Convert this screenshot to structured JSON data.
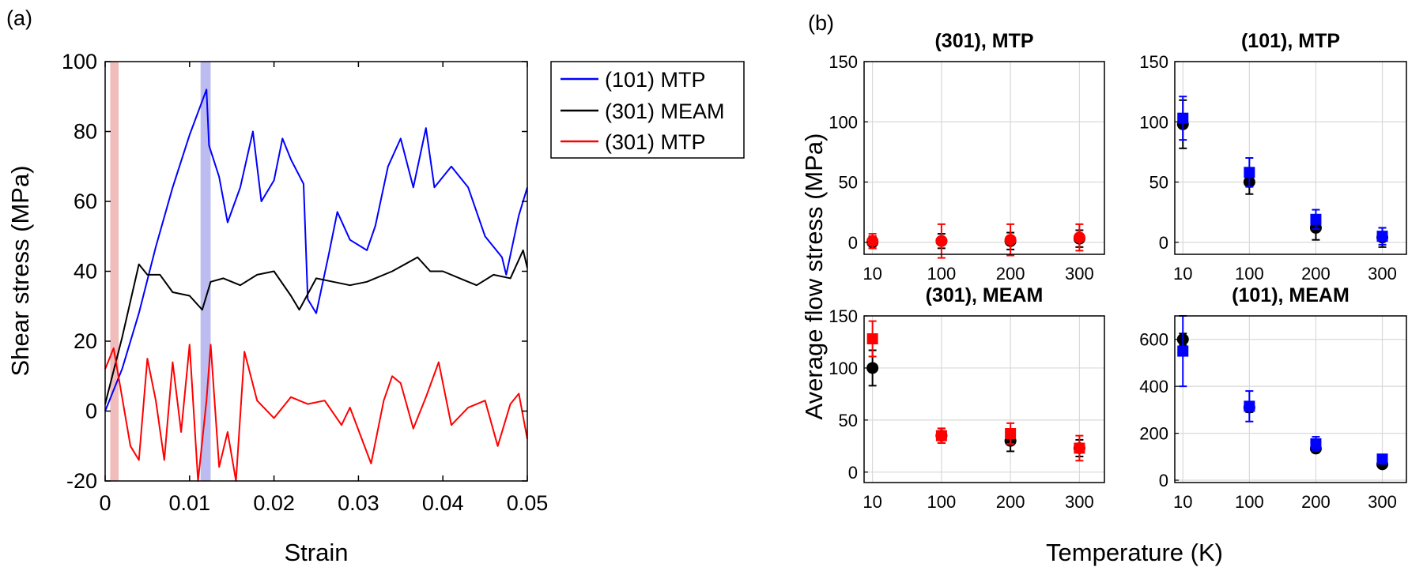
{
  "panel_a": {
    "tag": "(a)",
    "xlabel": "Strain",
    "ylabel": "Shear stress (MPa)"
  },
  "panel_b": {
    "tag": "(b)",
    "xlabel": "Temperature (K)",
    "ylabel": "Average flow stress (MPa)"
  },
  "colors": {
    "blue": "#0000ff",
    "black": "#000000",
    "red": "#ff0000"
  },
  "chart_data": [
    {
      "id": "a",
      "type": "line",
      "xlim": [
        0,
        0.05
      ],
      "ylim": [
        -20,
        100
      ],
      "xticks": [
        "0",
        "0.01",
        "0.02",
        "0.03",
        "0.04",
        "0.05"
      ],
      "yticks": [
        "-20",
        "0",
        "20",
        "40",
        "60",
        "80",
        "100"
      ],
      "grid": false,
      "legend_position": "outside-right",
      "highlight_bands": [
        {
          "x0": 0.0006,
          "x1": 0.0016,
          "color": "#f0bcbc"
        },
        {
          "x0": 0.0113,
          "x1": 0.0125,
          "color": "#bcbcf0"
        }
      ],
      "series": [
        {
          "name": "(101) MTP",
          "color": "#0000ff",
          "points": [
            [
              0,
              0
            ],
            [
              0.002,
              12
            ],
            [
              0.004,
              28
            ],
            [
              0.006,
              47
            ],
            [
              0.008,
              64
            ],
            [
              0.01,
              79
            ],
            [
              0.012,
              92
            ],
            [
              0.0123,
              76
            ],
            [
              0.0135,
              67
            ],
            [
              0.0145,
              54
            ],
            [
              0.016,
              64
            ],
            [
              0.0175,
              80
            ],
            [
              0.0185,
              60
            ],
            [
              0.02,
              66
            ],
            [
              0.021,
              78
            ],
            [
              0.022,
              72
            ],
            [
              0.0235,
              65
            ],
            [
              0.024,
              32
            ],
            [
              0.025,
              28
            ],
            [
              0.0265,
              45
            ],
            [
              0.0275,
              57
            ],
            [
              0.029,
              49
            ],
            [
              0.031,
              46
            ],
            [
              0.032,
              53
            ],
            [
              0.0335,
              70
            ],
            [
              0.035,
              78
            ],
            [
              0.0365,
              64
            ],
            [
              0.038,
              81
            ],
            [
              0.039,
              64
            ],
            [
              0.041,
              70
            ],
            [
              0.043,
              64
            ],
            [
              0.045,
              50
            ],
            [
              0.047,
              44
            ],
            [
              0.0475,
              39
            ],
            [
              0.049,
              56
            ],
            [
              0.05,
              64
            ]
          ]
        },
        {
          "name": "(301) MEAM",
          "color": "#000000",
          "points": [
            [
              0,
              2
            ],
            [
              0.002,
              21
            ],
            [
              0.004,
              42
            ],
            [
              0.005,
              39
            ],
            [
              0.0065,
              39
            ],
            [
              0.008,
              34
            ],
            [
              0.01,
              33
            ],
            [
              0.0115,
              29
            ],
            [
              0.0125,
              37
            ],
            [
              0.014,
              38
            ],
            [
              0.016,
              36
            ],
            [
              0.018,
              39
            ],
            [
              0.02,
              40
            ],
            [
              0.022,
              33
            ],
            [
              0.023,
              29
            ],
            [
              0.025,
              38
            ],
            [
              0.027,
              37
            ],
            [
              0.029,
              36
            ],
            [
              0.031,
              37
            ],
            [
              0.034,
              40
            ],
            [
              0.037,
              44
            ],
            [
              0.0385,
              40
            ],
            [
              0.04,
              40
            ],
            [
              0.042,
              38
            ],
            [
              0.044,
              36
            ],
            [
              0.046,
              39
            ],
            [
              0.048,
              38
            ],
            [
              0.0495,
              46
            ],
            [
              0.05,
              41
            ]
          ]
        },
        {
          "name": "(301) MTP",
          "color": "#ff0000",
          "points": [
            [
              0,
              12
            ],
            [
              0.001,
              18
            ],
            [
              0.002,
              4
            ],
            [
              0.003,
              -10
            ],
            [
              0.004,
              -14
            ],
            [
              0.005,
              15
            ],
            [
              0.006,
              3
            ],
            [
              0.007,
              -14
            ],
            [
              0.008,
              14
            ],
            [
              0.009,
              -6
            ],
            [
              0.01,
              19
            ],
            [
              0.011,
              -20
            ],
            [
              0.012,
              3
            ],
            [
              0.0125,
              19
            ],
            [
              0.0135,
              -16
            ],
            [
              0.0145,
              -6
            ],
            [
              0.0155,
              -20
            ],
            [
              0.0165,
              17
            ],
            [
              0.018,
              3
            ],
            [
              0.02,
              -2
            ],
            [
              0.022,
              4
            ],
            [
              0.024,
              2
            ],
            [
              0.026,
              3
            ],
            [
              0.028,
              -4
            ],
            [
              0.029,
              1
            ],
            [
              0.0315,
              -15
            ],
            [
              0.033,
              3
            ],
            [
              0.034,
              10
            ],
            [
              0.035,
              8
            ],
            [
              0.0365,
              -5
            ],
            [
              0.038,
              4
            ],
            [
              0.0395,
              14
            ],
            [
              0.041,
              -4
            ],
            [
              0.043,
              1
            ],
            [
              0.045,
              3
            ],
            [
              0.0465,
              -10
            ],
            [
              0.048,
              2
            ],
            [
              0.049,
              5
            ],
            [
              0.05,
              -8
            ]
          ]
        }
      ]
    },
    {
      "id": "b1",
      "type": "scatter",
      "title": "(301), MTP",
      "categories": [
        "10",
        "100",
        "200",
        "300"
      ],
      "ylim": [
        -10,
        150
      ],
      "yticks": [
        "0",
        "50",
        "100",
        "150"
      ],
      "grid": true,
      "series": [
        {
          "color": "#000000",
          "marker": "circle",
          "values": [
            0,
            1,
            1,
            3
          ],
          "err": [
            5,
            6,
            7,
            7
          ]
        },
        {
          "color": "#ff0000",
          "marker": "circle",
          "values": [
            1,
            1,
            2,
            4
          ],
          "err": [
            6,
            14,
            13,
            11
          ]
        }
      ]
    },
    {
      "id": "b2",
      "type": "scatter",
      "title": "(101), MTP",
      "categories": [
        "10",
        "100",
        "200",
        "300"
      ],
      "ylim": [
        -10,
        150
      ],
      "yticks": [
        "0",
        "50",
        "100",
        "150"
      ],
      "grid": true,
      "series": [
        {
          "color": "#000000",
          "marker": "circle",
          "values": [
            98,
            50,
            12,
            4
          ],
          "err": [
            20,
            10,
            10,
            8
          ]
        },
        {
          "color": "#0000ff",
          "marker": "square",
          "values": [
            103,
            58,
            19,
            5
          ],
          "err": [
            18,
            12,
            8,
            7
          ]
        }
      ]
    },
    {
      "id": "b3",
      "type": "scatter",
      "title": "(301), MEAM",
      "categories": [
        "10",
        "100",
        "200",
        "300"
      ],
      "ylim": [
        -10,
        150
      ],
      "yticks": [
        "0",
        "50",
        "100",
        "150"
      ],
      "grid": true,
      "series": [
        {
          "color": "#000000",
          "marker": "circle",
          "values": [
            100,
            35,
            30,
            23
          ],
          "err": [
            17,
            7,
            10,
            8
          ]
        },
        {
          "color": "#ff0000",
          "marker": "square",
          "values": [
            128,
            35,
            37,
            23
          ],
          "err": [
            17,
            7,
            10,
            12
          ]
        }
      ]
    },
    {
      "id": "b4",
      "type": "scatter",
      "title": "(101), MEAM",
      "categories": [
        "10",
        "100",
        "200",
        "300"
      ],
      "ylim": [
        -10,
        700
      ],
      "yticks": [
        "0",
        "200",
        "400",
        "600"
      ],
      "grid": true,
      "series": [
        {
          "color": "#000000",
          "marker": "circle",
          "values": [
            600,
            310,
            135,
            68
          ],
          "err": [
            25,
            20,
            15,
            10
          ]
        },
        {
          "color": "#0000ff",
          "marker": "square",
          "values": [
            550,
            315,
            155,
            90
          ],
          "err": [
            150,
            65,
            30,
            18
          ]
        }
      ]
    }
  ]
}
